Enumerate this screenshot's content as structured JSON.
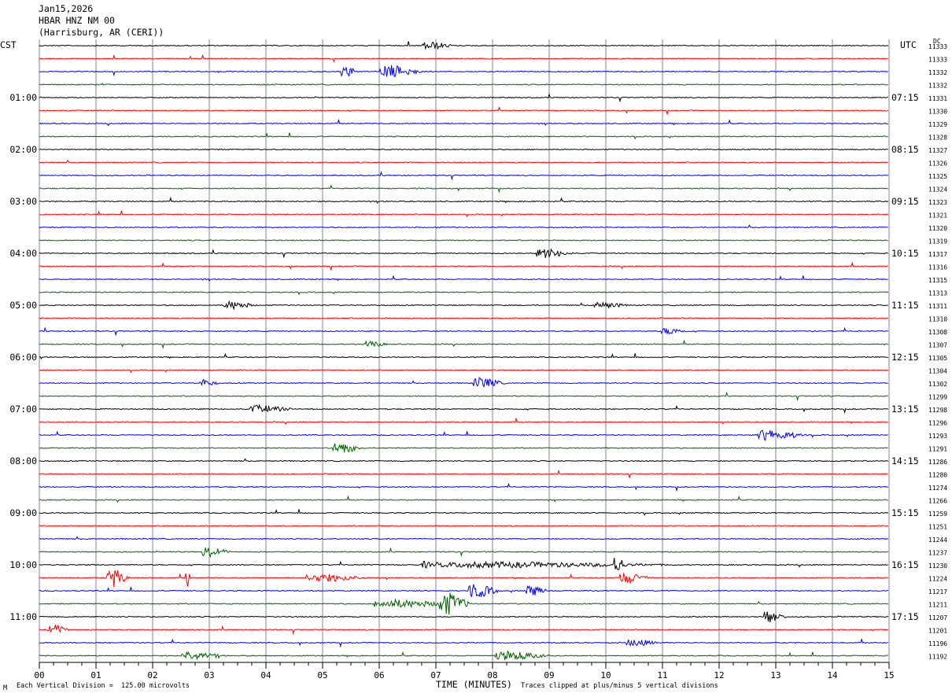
{
  "header": {
    "date": "Jan15,2026",
    "station": "HBAR HNZ NM 00",
    "location": "(Harrisburg, AR (CERI))"
  },
  "left_timezone": "CST",
  "right_timezone": "UTC",
  "dc_label": "DC",
  "chart_data": {
    "type": "line",
    "title": "",
    "xlabel": "TIME (MINUTES)",
    "xlim": [
      0,
      15
    ],
    "x_ticks": [
      "00",
      "01",
      "02",
      "03",
      "04",
      "05",
      "06",
      "07",
      "08",
      "09",
      "10",
      "11",
      "12",
      "13",
      "14",
      "15"
    ],
    "trace_count": 48,
    "trace_colors": [
      "#000000",
      "#ff0000",
      "#0000ff",
      "#006400"
    ],
    "left_hour_labels": [
      "01:00",
      "02:00",
      "03:00",
      "04:00",
      "05:00",
      "06:00",
      "07:00",
      "08:00",
      "09:00",
      "10:00",
      "11:00"
    ],
    "right_hour_labels": [
      "07:15",
      "08:15",
      "09:15",
      "10:15",
      "11:15",
      "12:15",
      "13:15",
      "14:15",
      "15:15",
      "16:15",
      "17:15"
    ],
    "dc_offsets": [
      11333,
      11333,
      11332,
      11332,
      11331,
      11330,
      11329,
      11328,
      11327,
      11326,
      11325,
      11324,
      11323,
      11321,
      11320,
      11319,
      11317,
      11316,
      11315,
      11313,
      11311,
      11310,
      11308,
      11307,
      11305,
      11304,
      11302,
      11299,
      11298,
      11296,
      11293,
      11291,
      11286,
      11280,
      11274,
      11266,
      11259,
      11251,
      11244,
      11237,
      11230,
      11224,
      11217,
      11211,
      11207,
      11201,
      11196,
      11192
    ],
    "events": [
      {
        "trace": 0,
        "minute": 6.9,
        "amp": 0.35,
        "dur": 0.3
      },
      {
        "trace": 2,
        "minute": 5.4,
        "amp": 0.55,
        "dur": 0.15
      },
      {
        "trace": 2,
        "minute": 6.2,
        "amp": 0.6,
        "dur": 0.4
      },
      {
        "trace": 16,
        "minute": 8.95,
        "amp": 0.4,
        "dur": 0.35
      },
      {
        "trace": 20,
        "minute": 3.4,
        "amp": 0.35,
        "dur": 0.3
      },
      {
        "trace": 20,
        "minute": 9.95,
        "amp": 0.3,
        "dur": 0.3
      },
      {
        "trace": 22,
        "minute": 11.1,
        "amp": 0.3,
        "dur": 0.25
      },
      {
        "trace": 23,
        "minute": 5.85,
        "amp": 0.3,
        "dur": 0.2
      },
      {
        "trace": 26,
        "minute": 2.9,
        "amp": 0.3,
        "dur": 0.2
      },
      {
        "trace": 26,
        "minute": 7.8,
        "amp": 0.5,
        "dur": 0.3
      },
      {
        "trace": 28,
        "minute": 3.9,
        "amp": 0.35,
        "dur": 0.4
      },
      {
        "trace": 30,
        "minute": 12.9,
        "amp": 0.5,
        "dur": 0.45
      },
      {
        "trace": 31,
        "minute": 5.3,
        "amp": 0.5,
        "dur": 0.3
      },
      {
        "trace": 39,
        "minute": 3.0,
        "amp": 0.55,
        "dur": 0.25
      },
      {
        "trace": 40,
        "minute": 6.8,
        "amp": 0.3,
        "dur": 0.15
      },
      {
        "trace": 40,
        "minute": 8.1,
        "amp": 0.25,
        "dur": 2.2
      },
      {
        "trace": 40,
        "minute": 10.2,
        "amp": 0.9,
        "dur": 0.1
      },
      {
        "trace": 41,
        "minute": 1.3,
        "amp": 0.9,
        "dur": 0.2
      },
      {
        "trace": 41,
        "minute": 2.6,
        "amp": 1.0,
        "dur": 0.05
      },
      {
        "trace": 41,
        "minute": 5.0,
        "amp": 0.35,
        "dur": 0.6
      },
      {
        "trace": 41,
        "minute": 10.4,
        "amp": 0.5,
        "dur": 0.3
      },
      {
        "trace": 42,
        "minute": 7.7,
        "amp": 0.7,
        "dur": 0.3
      },
      {
        "trace": 42,
        "minute": 8.7,
        "amp": 0.5,
        "dur": 0.2
      },
      {
        "trace": 43,
        "minute": 7.2,
        "amp": 1.0,
        "dur": 0.3
      },
      {
        "trace": 43,
        "minute": 6.3,
        "amp": 0.35,
        "dur": 0.8
      },
      {
        "trace": 44,
        "minute": 12.9,
        "amp": 0.6,
        "dur": 0.2
      },
      {
        "trace": 45,
        "minute": 0.25,
        "amp": 0.5,
        "dur": 0.2
      },
      {
        "trace": 46,
        "minute": 10.5,
        "amp": 0.35,
        "dur": 0.3
      },
      {
        "trace": 47,
        "minute": 2.7,
        "amp": 0.4,
        "dur": 0.4
      },
      {
        "trace": 47,
        "minute": 8.3,
        "amp": 0.4,
        "dur": 0.5
      }
    ]
  },
  "footer": {
    "scale": "Each Vertical Division =  125.00 microvolts",
    "xlabel": "TIME (MINUTES)",
    "clip": "Traces clipped at plus/minus 5 vertical divisions",
    "logo": "M"
  }
}
